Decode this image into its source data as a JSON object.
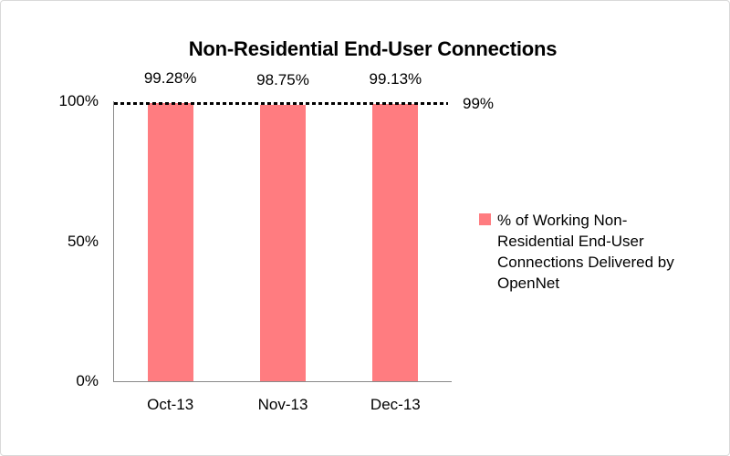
{
  "window": {
    "background": "#ffffff",
    "border_color": "#d9d9d9"
  },
  "chart_data": {
    "type": "bar",
    "title": "Non-Residential End-User Connections",
    "categories": [
      "Oct-13",
      "Nov-13",
      "Dec-13"
    ],
    "series": [
      {
        "name": "% of Working Non-Residential End-User Connections Delivered by OpenNet",
        "values": [
          99.28,
          98.75,
          99.13
        ],
        "point_labels": [
          "99.28%",
          "98.75%",
          "99.13%"
        ],
        "color": "#FF7C80"
      }
    ],
    "target_line": {
      "value": 99,
      "label": "99%",
      "style": "dotted",
      "color": "#000000"
    },
    "y_axis": {
      "min": 0,
      "max": 100,
      "ticks": [
        {
          "value": 100,
          "label": "100%"
        },
        {
          "value": 50,
          "label": "50%"
        },
        {
          "value": 0,
          "label": "0%"
        }
      ]
    },
    "axis_color": "#8a8a8a",
    "grid": false,
    "legend_position": "right"
  }
}
